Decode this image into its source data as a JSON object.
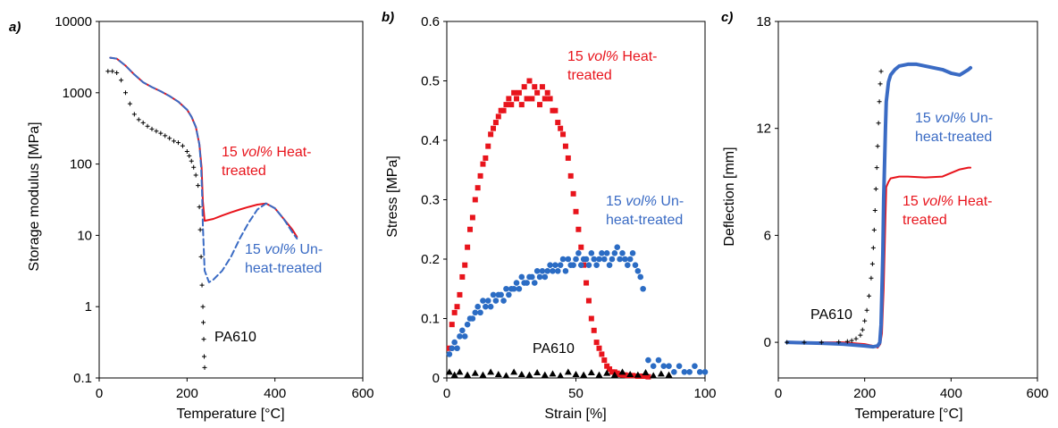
{
  "chart_data": [
    {
      "panel_label": "a)",
      "type": "line",
      "xlabel": "Temperature [°C]",
      "ylabel": "Storage modulus [MPa]",
      "xlim": [
        0,
        600
      ],
      "ylim": [
        0.1,
        10000
      ],
      "y_scale": "log",
      "x_ticks": [
        "0",
        "200",
        "400",
        "600"
      ],
      "y_ticks": [
        "0.1",
        "1",
        "10",
        "100",
        "1000",
        "10000"
      ],
      "y_tick_values": [
        0.1,
        1,
        10,
        100,
        1000,
        10000
      ],
      "grid": false,
      "series": [
        {
          "color": "#e8141c",
          "style": "solid",
          "x": [
            25,
            40,
            60,
            80,
            100,
            120,
            140,
            160,
            180,
            200,
            210,
            220,
            228,
            233,
            236,
            240,
            260,
            280,
            300,
            320,
            340,
            360,
            380,
            400,
            420,
            440,
            450
          ],
          "y": [
            3100,
            3000,
            2400,
            1800,
            1400,
            1200,
            1050,
            900,
            750,
            580,
            460,
            330,
            190,
            90,
            30,
            16,
            17,
            19,
            21,
            23,
            25,
            27,
            28,
            24,
            17,
            12,
            9.5
          ]
        },
        {
          "color": "#3a6bc4",
          "style": "dashed",
          "x": [
            25,
            40,
            60,
            80,
            100,
            120,
            140,
            160,
            180,
            200,
            210,
            220,
            228,
            232,
            234,
            236,
            240,
            250,
            260,
            280,
            300,
            320,
            340,
            360,
            380,
            400,
            420,
            440,
            450
          ],
          "y": [
            3100,
            3000,
            2400,
            1800,
            1400,
            1200,
            1050,
            900,
            750,
            580,
            460,
            330,
            190,
            90,
            40,
            14,
            3.2,
            2.2,
            2.4,
            3.2,
            5,
            9,
            15,
            23,
            28,
            24,
            17,
            11,
            9
          ]
        },
        {
          "color": "#000000",
          "style": "markers",
          "x": [
            20,
            30,
            40,
            50,
            60,
            70,
            80,
            90,
            100,
            110,
            120,
            130,
            140,
            150,
            160,
            170,
            180,
            190,
            200,
            205,
            210,
            215,
            220,
            225,
            228,
            230,
            232,
            234,
            236,
            237,
            238,
            239,
            240
          ],
          "y": [
            2000,
            2000,
            1900,
            1500,
            1000,
            700,
            500,
            420,
            380,
            340,
            310,
            290,
            270,
            250,
            230,
            210,
            200,
            180,
            150,
            130,
            110,
            90,
            70,
            50,
            25,
            12,
            5,
            2,
            1,
            0.6,
            0.35,
            0.2,
            0.14
          ]
        }
      ],
      "annotations": [
        {
          "text_parts": [
            "15 ",
            "vol%",
            " Heat-"
          ],
          "line2": "treated",
          "color": "#e8141c"
        },
        {
          "text_parts": [
            "15 ",
            "vol%",
            " Un-"
          ],
          "line2": "heat-treated",
          "color": "#3a6bc4"
        },
        {
          "text": "PA610",
          "color": "#000000"
        }
      ]
    },
    {
      "panel_label": "b)",
      "type": "scatter",
      "xlabel": "Strain [%]",
      "ylabel": "Stress [MPa]",
      "xlim": [
        0,
        100
      ],
      "ylim": [
        0,
        0.6
      ],
      "x_ticks": [
        "0",
        "50",
        "100"
      ],
      "y_ticks": [
        "0",
        "0.1",
        "0.2",
        "0.3",
        "0.4",
        "0.5",
        "0.6"
      ],
      "y_tick_values": [
        0,
        0.1,
        0.2,
        0.3,
        0.4,
        0.5,
        0.6
      ],
      "grid": false,
      "series": [
        {
          "color": "#e8141c",
          "marker": "square",
          "x": [
            1,
            2,
            3,
            4,
            5,
            6,
            7,
            8,
            9,
            10,
            11,
            12,
            13,
            14,
            15,
            16,
            17,
            18,
            19,
            20,
            21,
            22,
            23,
            24,
            25,
            26,
            27,
            28,
            29,
            30,
            31,
            32,
            33,
            34,
            35,
            36,
            37,
            38,
            39,
            40,
            41,
            42,
            43,
            44,
            45,
            46,
            47,
            48,
            49,
            50,
            51,
            52,
            53,
            54,
            55,
            56,
            57,
            58,
            59,
            60,
            61,
            62,
            63,
            64,
            65,
            66,
            67,
            68,
            69,
            70,
            72,
            74,
            76,
            78
          ],
          "y": [
            0.05,
            0.09,
            0.11,
            0.12,
            0.14,
            0.17,
            0.19,
            0.22,
            0.25,
            0.27,
            0.3,
            0.32,
            0.34,
            0.36,
            0.37,
            0.39,
            0.41,
            0.42,
            0.43,
            0.44,
            0.45,
            0.45,
            0.46,
            0.47,
            0.46,
            0.48,
            0.47,
            0.48,
            0.46,
            0.49,
            0.47,
            0.5,
            0.47,
            0.49,
            0.48,
            0.46,
            0.49,
            0.47,
            0.48,
            0.47,
            0.45,
            0.45,
            0.43,
            0.42,
            0.41,
            0.39,
            0.37,
            0.34,
            0.31,
            0.28,
            0.25,
            0.22,
            0.19,
            0.16,
            0.13,
            0.1,
            0.08,
            0.06,
            0.05,
            0.04,
            0.03,
            0.02,
            0.015,
            0.01,
            0.01,
            0.008,
            0.006,
            0.005,
            0.005,
            0.004,
            0.004,
            0.003,
            0.003,
            0.002
          ]
        },
        {
          "color": "#2b6cc4",
          "marker": "circle",
          "x": [
            1,
            2,
            3,
            4,
            5,
            6,
            7,
            8,
            9,
            10,
            11,
            12,
            13,
            14,
            15,
            16,
            17,
            18,
            19,
            20,
            21,
            22,
            23,
            24,
            25,
            26,
            27,
            28,
            29,
            30,
            31,
            32,
            33,
            34,
            35,
            36,
            37,
            38,
            39,
            40,
            41,
            42,
            43,
            44,
            45,
            46,
            47,
            48,
            49,
            50,
            51,
            52,
            53,
            54,
            55,
            56,
            57,
            58,
            59,
            60,
            61,
            62,
            63,
            64,
            65,
            66,
            67,
            68,
            69,
            70,
            71,
            72,
            73,
            74,
            75,
            76,
            78,
            80,
            82,
            84,
            86,
            88,
            90,
            92,
            94,
            96,
            98,
            100
          ],
          "y": [
            0.04,
            0.05,
            0.06,
            0.05,
            0.07,
            0.08,
            0.07,
            0.09,
            0.1,
            0.1,
            0.11,
            0.12,
            0.11,
            0.13,
            0.12,
            0.13,
            0.12,
            0.14,
            0.13,
            0.14,
            0.14,
            0.13,
            0.15,
            0.14,
            0.15,
            0.15,
            0.16,
            0.15,
            0.17,
            0.16,
            0.16,
            0.17,
            0.17,
            0.16,
            0.18,
            0.17,
            0.18,
            0.17,
            0.18,
            0.19,
            0.18,
            0.19,
            0.18,
            0.19,
            0.2,
            0.18,
            0.2,
            0.19,
            0.19,
            0.2,
            0.21,
            0.19,
            0.2,
            0.2,
            0.19,
            0.21,
            0.2,
            0.19,
            0.2,
            0.21,
            0.2,
            0.21,
            0.19,
            0.2,
            0.21,
            0.22,
            0.2,
            0.21,
            0.2,
            0.19,
            0.2,
            0.21,
            0.19,
            0.18,
            0.17,
            0.15,
            0.03,
            0.02,
            0.03,
            0.02,
            0.02,
            0.01,
            0.02,
            0.01,
            0.01,
            0.02,
            0.01,
            0.01
          ]
        },
        {
          "color": "#000000",
          "marker": "triangle",
          "x": [
            1,
            3,
            5,
            8,
            11,
            14,
            17,
            20,
            23,
            26,
            29,
            32,
            35,
            38,
            41,
            44,
            47,
            50,
            53,
            56,
            59,
            62,
            65,
            68,
            71,
            74,
            77,
            80,
            83,
            86
          ],
          "y": [
            0.01,
            0.005,
            0.01,
            0.005,
            0.008,
            0.005,
            0.01,
            0.006,
            0.004,
            0.01,
            0.006,
            0.005,
            0.009,
            0.005,
            0.007,
            0.004,
            0.01,
            0.006,
            0.005,
            0.009,
            0.005,
            0.008,
            0.005,
            0.01,
            0.006,
            0.005,
            0.009,
            0.004,
            0.007,
            0.005
          ]
        }
      ],
      "annotations": [
        {
          "text_parts": [
            "15 ",
            "vol%",
            " Heat-"
          ],
          "line2": "treated",
          "color": "#e8141c"
        },
        {
          "text_parts": [
            "15 ",
            "vol%",
            " Un-"
          ],
          "line2": "heat-treated",
          "color": "#3a6bc4"
        },
        {
          "text": "PA610",
          "color": "#000000"
        }
      ]
    },
    {
      "panel_label": "c)",
      "type": "line",
      "xlabel": "Temperature [°C]",
      "ylabel": "Deflection [mm]",
      "xlim": [
        0,
        600
      ],
      "ylim": [
        -2,
        18
      ],
      "x_ticks": [
        "0",
        "200",
        "400",
        "600"
      ],
      "y_ticks": [
        "0",
        "6",
        "12",
        "18"
      ],
      "y_tick_values": [
        0,
        6,
        12,
        18
      ],
      "grid": false,
      "series": [
        {
          "color": "#e8141c",
          "style": "solid",
          "x": [
            20,
            100,
            150,
            200,
            220,
            230,
            236,
            240,
            244,
            248,
            250,
            255,
            260,
            280,
            300,
            340,
            380,
            400,
            420,
            440,
            445
          ],
          "y": [
            0,
            0,
            0,
            -0.1,
            -0.2,
            -0.3,
            -0.1,
            0.5,
            3,
            7,
            8.7,
            9,
            9.2,
            9.3,
            9.3,
            9.25,
            9.3,
            9.5,
            9.7,
            9.8,
            9.8
          ]
        },
        {
          "color": "#3a6bc4",
          "style": "thick",
          "x": [
            20,
            100,
            150,
            200,
            220,
            230,
            235,
            238,
            240,
            242,
            244,
            246,
            248,
            250,
            255,
            260,
            270,
            280,
            300,
            320,
            340,
            360,
            380,
            400,
            420,
            440,
            445
          ],
          "y": [
            0,
            -0.05,
            -0.1,
            -0.2,
            -0.25,
            -0.2,
            0,
            1,
            3,
            5,
            8,
            10,
            12,
            13.5,
            14.6,
            15,
            15.3,
            15.5,
            15.6,
            15.6,
            15.5,
            15.4,
            15.3,
            15.1,
            15.0,
            15.3,
            15.4
          ]
        },
        {
          "color": "#000000",
          "style": "markers",
          "x": [
            20,
            60,
            100,
            140,
            160,
            170,
            180,
            190,
            195,
            200,
            205,
            210,
            215,
            218,
            220,
            222,
            224,
            226,
            228,
            230,
            232,
            234,
            236,
            238
          ],
          "y": [
            0,
            0,
            0,
            0.02,
            0.05,
            0.1,
            0.2,
            0.4,
            0.7,
            1.2,
            1.8,
            2.6,
            3.6,
            4.4,
            5.3,
            6.3,
            7.4,
            8.6,
            9.8,
            11,
            12.3,
            13.5,
            14.5,
            15.2
          ]
        }
      ],
      "annotations": [
        {
          "text_parts": [
            "15 ",
            "vol%",
            " Un-"
          ],
          "line2": "heat-treated",
          "color": "#3a6bc4"
        },
        {
          "text_parts": [
            "15 ",
            "vol%",
            " Heat-"
          ],
          "line2": "treated",
          "color": "#e8141c"
        },
        {
          "text": "PA610",
          "color": "#000000"
        }
      ]
    }
  ]
}
